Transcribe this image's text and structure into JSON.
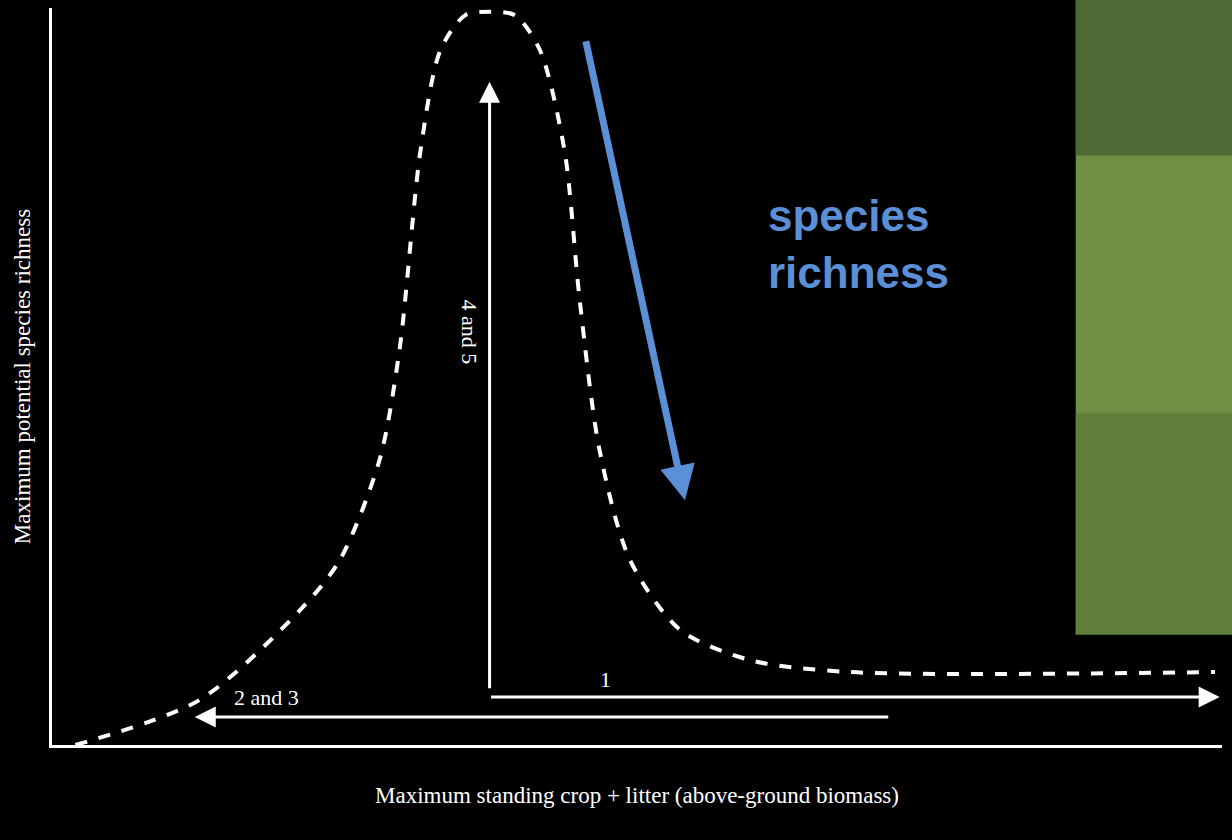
{
  "chart_data": {
    "type": "line",
    "x_label": "Maximum standing crop + litter (above-ground biomass)",
    "y_label": "Maximum potential species richness",
    "x": [
      2.0,
      12.6,
      21.2,
      24.6,
      28.0,
      29.7,
      31.5,
      33.2,
      35.3,
      37.4,
      39.6,
      41.7,
      43.8,
      45.1,
      46.8,
      49.4,
      53.7,
      59.7,
      68.2,
      99.4
    ],
    "values": [
      0,
      6.1,
      18.3,
      25.1,
      38.7,
      53.6,
      80.7,
      94.3,
      99,
      99.5,
      99,
      94.3,
      80.7,
      60.4,
      40,
      25.1,
      15.6,
      11.5,
      9.9,
      9.9
    ],
    "color": "#ffffff",
    "line_style": "dashed",
    "xlim": [
      0,
      100
    ],
    "ylim": [
      0,
      100
    ],
    "tick_labels": false,
    "grid": false,
    "annotations": [
      {
        "text": "4 and 5",
        "x": 35.7,
        "y": 56,
        "arrow_from": [
          37.4,
          7.5
        ],
        "arrow_to": [
          37.4,
          90
        ],
        "color": "#ffffff"
      },
      {
        "text": "1",
        "x": 47.3,
        "y": 8.9,
        "arrow_from": [
          37.4,
          6.5
        ],
        "arrow_to": [
          99.8,
          6.5
        ],
        "color": "#ffffff"
      },
      {
        "text": "2 and 3",
        "x": 18.3,
        "y": 6.5,
        "arrow_from": [
          71.6,
          3.8
        ],
        "arrow_to": [
          12.2,
          3.8
        ],
        "color": "#ffffff"
      },
      {
        "text": "species richness",
        "x": 61,
        "y": 68,
        "arrow_from": [
          45.6,
          95.7
        ],
        "arrow_to": [
          54.1,
          33.2
        ],
        "color": "#5b8fd6"
      }
    ]
  }
}
